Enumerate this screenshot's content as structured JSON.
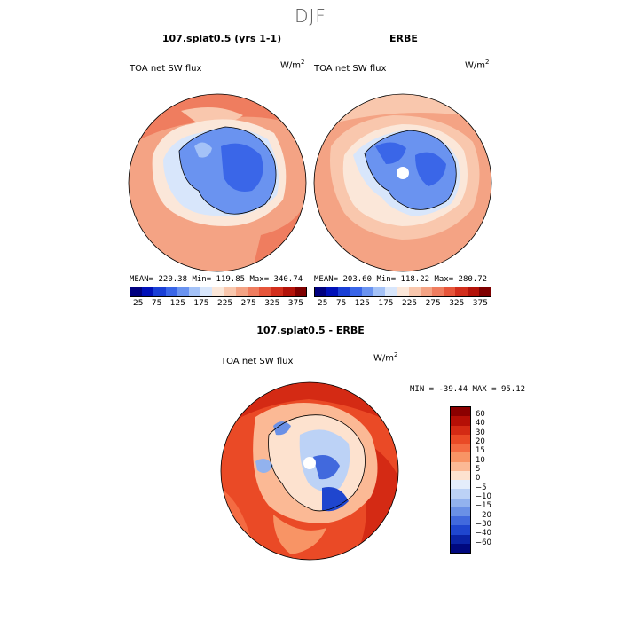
{
  "season": "DJF",
  "panels": [
    {
      "title": "107.splat0.5 (yrs 1-1)",
      "variable": "TOA net SW flux",
      "units": "W/m",
      "units_exp": "2",
      "stats": "MEAN= 220.38   Min= 119.85   Max= 340.74"
    },
    {
      "title": "ERBE",
      "variable": "TOA net SW flux",
      "units": "W/m",
      "units_exp": "2",
      "stats": "MEAN= 203.60   Min= 118.22   Max= 280.72"
    }
  ],
  "abs_colorbar": {
    "labels": [
      "25",
      "75",
      "125",
      "175",
      "225",
      "275",
      "325",
      "375"
    ],
    "colors": [
      "#00007f",
      "#0010b8",
      "#1a3fd6",
      "#3a66e8",
      "#6a93f0",
      "#a4c2f7",
      "#d8e6fb",
      "#fbe7d9",
      "#f9c7ad",
      "#f4a384",
      "#ef7d5f",
      "#e6553a",
      "#d22e1c",
      "#b3130a",
      "#7e0000"
    ]
  },
  "diff_panel": {
    "title": "107.splat0.5 - ERBE",
    "variable": "TOA net SW flux",
    "units": "W/m",
    "units_exp": "2",
    "minmax": "MIN = -39.44 MAX =  95.12"
  },
  "diff_colorbar": {
    "labels": [
      "60",
      "40",
      "30",
      "20",
      "15",
      "10",
      "5",
      "0",
      "−5",
      "−10",
      "−15",
      "−20",
      "−30",
      "−40",
      "−60"
    ],
    "colors": [
      "#8b0000",
      "#b50f06",
      "#d42a14",
      "#ea4a26",
      "#f46b42",
      "#f89465",
      "#fbb995",
      "#fde2cf",
      "#e4edfb",
      "#bcd2f6",
      "#92b2ee",
      "#6a90e6",
      "#4169dd",
      "#1f46cf",
      "#0a23a6",
      "#00087e"
    ]
  }
}
